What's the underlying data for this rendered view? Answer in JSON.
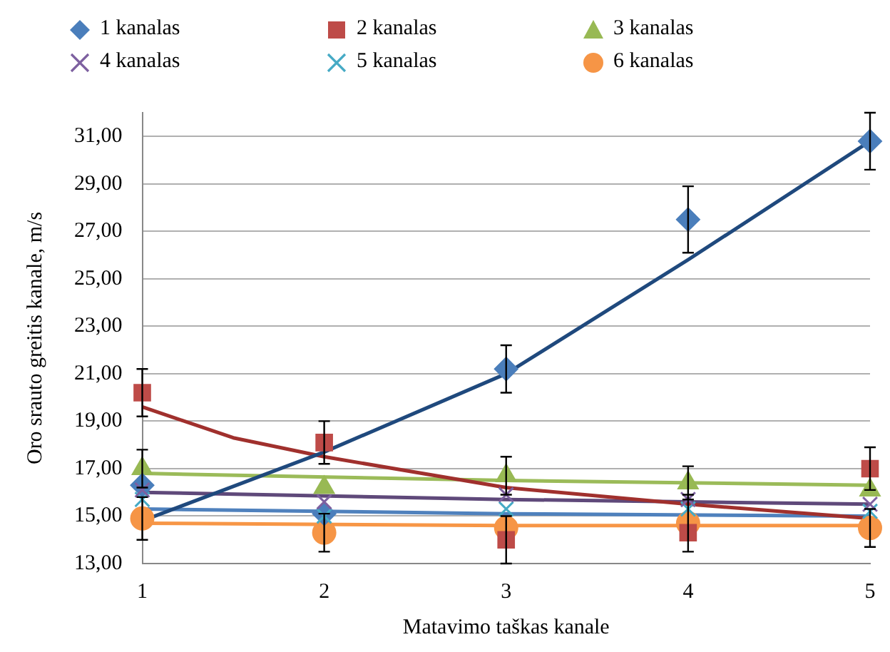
{
  "chart_data": {
    "type": "scatter",
    "xlabel": "Matavimo taškas kanale",
    "ylabel": "Oro srauto greitis kanale, m/s",
    "x": [
      1,
      2,
      3,
      4,
      5
    ],
    "xlim": [
      1,
      5
    ],
    "xticks": [
      1,
      2,
      3,
      4,
      5
    ],
    "ylim": [
      13,
      32
    ],
    "yticks": [
      {
        "value": 13,
        "label": "13,00"
      },
      {
        "value": 15,
        "label": "15,00"
      },
      {
        "value": 17,
        "label": "17,00"
      },
      {
        "value": 19,
        "label": "19,00"
      },
      {
        "value": 21,
        "label": "21,00"
      },
      {
        "value": 23,
        "label": "23,00"
      },
      {
        "value": 25,
        "label": "25,00"
      },
      {
        "value": 27,
        "label": "27,00"
      },
      {
        "value": 29,
        "label": "29,00"
      },
      {
        "value": 31,
        "label": "31,00"
      }
    ],
    "grid": "y",
    "legend": "top",
    "series": [
      {
        "name": "1 kanalas",
        "color": "#4a7ebb",
        "marker": "diamond",
        "values": [
          16.3,
          15.1,
          21.2,
          27.5,
          30.8
        ],
        "errors": [
          null,
          null,
          1.0,
          1.4,
          1.2
        ]
      },
      {
        "name": "2 kanalas",
        "color": "#be4b48",
        "marker": "square",
        "values": [
          20.2,
          18.1,
          14.0,
          14.3,
          17.0
        ],
        "errors": [
          1.0,
          0.9,
          1.0,
          null,
          0.9
        ]
      },
      {
        "name": "3 kanalas",
        "color": "#98b954",
        "marker": "triangle",
        "values": [
          17.0,
          16.2,
          16.7,
          16.4,
          16.1
        ],
        "errors": [
          0.8,
          null,
          0.8,
          0.7,
          null
        ]
      },
      {
        "name": "4 kanalas",
        "color": "#7d60a0",
        "marker": "cross",
        "values": [
          16.1,
          15.6,
          15.9,
          15.7,
          15.5
        ]
      },
      {
        "name": "5 kanalas",
        "color": "#46aac5",
        "marker": "cross",
        "values": [
          15.7,
          15.0,
          15.3,
          15.3,
          15.2
        ]
      },
      {
        "name": "6 kanalas",
        "color": "#f69546",
        "marker": "circle",
        "values": [
          14.9,
          14.3,
          14.5,
          14.7,
          14.5
        ],
        "errors": [
          0.9,
          0.8,
          null,
          1.2,
          0.8
        ]
      },
      {
        "type": "line",
        "color": "#1f497d",
        "marker": "none",
        "x": [
          1,
          2,
          3,
          4,
          5
        ],
        "values": [
          14.8,
          17.7,
          21.0,
          25.8,
          30.8
        ]
      },
      {
        "type": "line",
        "color": "#a0302d",
        "marker": "none",
        "x": [
          1,
          1.5,
          2,
          3,
          4,
          5
        ],
        "values": [
          19.6,
          18.3,
          17.5,
          16.2,
          15.5,
          14.9
        ]
      },
      {
        "type": "line",
        "color": "#9bbb59",
        "marker": "none",
        "x": [
          1,
          3,
          5
        ],
        "values": [
          16.8,
          16.5,
          16.3
        ]
      },
      {
        "type": "line",
        "color": "#5f497a",
        "marker": "none",
        "x": [
          1,
          3,
          5
        ],
        "values": [
          16.0,
          15.7,
          15.5
        ]
      },
      {
        "type": "line",
        "color": "#4f81bd",
        "marker": "none",
        "x": [
          1,
          3,
          5
        ],
        "values": [
          15.3,
          15.1,
          15.0
        ]
      },
      {
        "type": "line",
        "color": "#f79646",
        "marker": "none",
        "x": [
          1,
          3,
          5
        ],
        "values": [
          14.7,
          14.6,
          14.6
        ]
      }
    ]
  }
}
